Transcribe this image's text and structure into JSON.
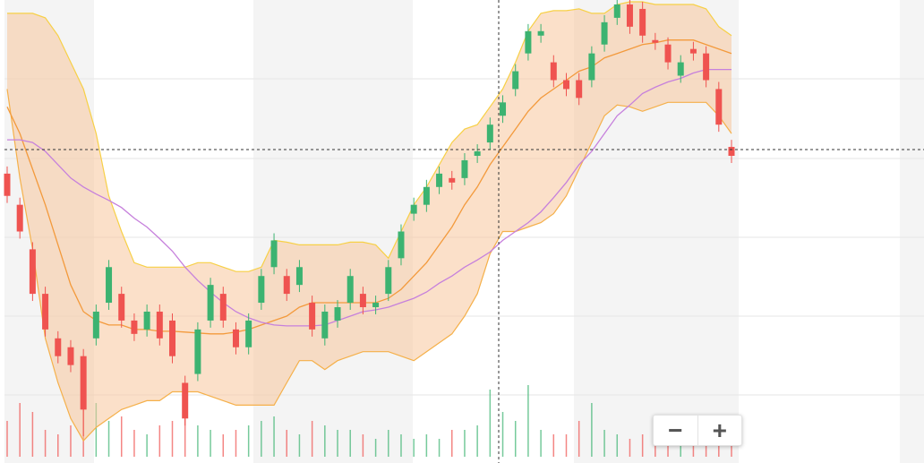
{
  "chart_data": {
    "type": "candlestick",
    "open": [
      325,
      290,
      240,
      190,
      140,
      130,
      120,
      140,
      180,
      190,
      160,
      150,
      170,
      160,
      90,
      100,
      160,
      190,
      150,
      130,
      180,
      220,
      210,
      200,
      180,
      140,
      160,
      180,
      190,
      175,
      190,
      230,
      280,
      290,
      310,
      320,
      320,
      345,
      360,
      390,
      420,
      460,
      480,
      450,
      430,
      430,
      430,
      470,
      500,
      515,
      510,
      475,
      470,
      435,
      465,
      460,
      420,
      355
    ],
    "high": [
      333,
      298,
      248,
      198,
      148,
      138,
      128,
      178,
      228,
      198,
      168,
      178,
      178,
      168,
      98,
      158,
      208,
      198,
      158,
      168,
      218,
      258,
      218,
      228,
      188,
      178,
      183,
      218,
      198,
      188,
      228,
      268,
      298,
      318,
      333,
      328,
      348,
      358,
      388,
      413,
      448,
      493,
      493,
      458,
      438,
      438,
      468,
      503,
      520,
      520,
      518,
      483,
      478,
      458,
      473,
      468,
      428,
      363
    ],
    "low": [
      292,
      252,
      182,
      142,
      112,
      102,
      30,
      132,
      172,
      152,
      137,
      142,
      132,
      112,
      42,
      92,
      152,
      152,
      122,
      122,
      172,
      212,
      182,
      192,
      142,
      132,
      152,
      172,
      167,
      167,
      182,
      222,
      272,
      282,
      302,
      307,
      312,
      337,
      352,
      382,
      412,
      452,
      472,
      422,
      412,
      402,
      422,
      462,
      492,
      482,
      472,
      464,
      442,
      427,
      452,
      422,
      372,
      337
    ],
    "close": [
      300,
      260,
      190,
      150,
      120,
      110,
      60,
      170,
      220,
      160,
      145,
      170,
      140,
      120,
      50,
      150,
      200,
      160,
      130,
      160,
      210,
      250,
      190,
      220,
      150,
      170,
      175,
      210,
      175,
      180,
      220,
      260,
      290,
      310,
      325,
      315,
      340,
      350,
      380,
      405,
      440,
      485,
      485,
      430,
      420,
      410,
      460,
      495,
      515,
      490,
      480,
      472,
      450,
      450,
      460,
      430,
      380,
      345
    ],
    "volume": [
      40,
      60,
      50,
      30,
      25,
      35,
      70,
      60,
      40,
      45,
      30,
      25,
      35,
      40,
      55,
      35,
      30,
      25,
      30,
      35,
      40,
      45,
      30,
      25,
      40,
      35,
      30,
      30,
      25,
      20,
      30,
      25,
      20,
      25,
      20,
      30,
      30,
      35,
      75,
      50,
      40,
      80,
      30,
      25,
      25,
      40,
      60,
      30,
      25,
      20,
      25,
      30,
      25,
      20,
      30,
      25,
      35,
      40
    ],
    "up_color": "#3cb371",
    "down_color": "#ef5350",
    "ylim": [
      0,
      520
    ],
    "volume_lim": [
      0,
      100
    ],
    "band": {
      "fill": "#f7c79c",
      "upper_color": "#f7d046",
      "lower_color": "#f5b04a",
      "upper": [
        505,
        505,
        505,
        500,
        480,
        450,
        420,
        370,
        300,
        260,
        225,
        220,
        220,
        220,
        220,
        225,
        225,
        220,
        215,
        215,
        220,
        250,
        248,
        245,
        245,
        245,
        245,
        248,
        248,
        245,
        230,
        260,
        290,
        310,
        335,
        360,
        375,
        380,
        400,
        420,
        450,
        485,
        505,
        508,
        508,
        510,
        505,
        505,
        515,
        518,
        518,
        515,
        515,
        515,
        515,
        510,
        490,
        480
      ],
      "lower": [
        420,
        320,
        240,
        140,
        90,
        50,
        25,
        40,
        50,
        60,
        65,
        70,
        70,
        80,
        80,
        80,
        75,
        70,
        65,
        65,
        65,
        65,
        90,
        115,
        115,
        105,
        115,
        120,
        125,
        125,
        125,
        120,
        115,
        125,
        135,
        145,
        165,
        190,
        235,
        260,
        260,
        265,
        270,
        280,
        300,
        330,
        360,
        390,
        402,
        400,
        395,
        400,
        405,
        405,
        405,
        405,
        390,
        370
      ]
    },
    "overlays": [
      {
        "color": "#f39a3c",
        "values": [
          400,
          370,
          330,
          290,
          245,
          200,
          170,
          160,
          155,
          155,
          150,
          150,
          148,
          148,
          147,
          146,
          145,
          145,
          147,
          150,
          155,
          160,
          165,
          175,
          180,
          180,
          180,
          180,
          180,
          180,
          185,
          195,
          210,
          225,
          245,
          265,
          290,
          310,
          335,
          355,
          375,
          395,
          410,
          420,
          430,
          440,
          445,
          455,
          460,
          465,
          470,
          472,
          475,
          475,
          475,
          470,
          465,
          460
        ]
      },
      {
        "color": "#c680dc",
        "values": [
          363,
          363,
          360,
          350,
          335,
          320,
          310,
          302,
          295,
          287,
          275,
          265,
          252,
          238,
          220,
          205,
          192,
          180,
          170,
          163,
          158,
          155,
          154,
          154,
          154,
          155,
          160,
          165,
          170,
          172,
          175,
          180,
          185,
          192,
          202,
          210,
          220,
          228,
          237,
          250,
          260,
          270,
          282,
          298,
          315,
          335,
          350,
          370,
          390,
          402,
          415,
          422,
          428,
          432,
          438,
          442,
          442,
          442
        ]
      }
    ]
  },
  "controls": {
    "zoom_out": "−",
    "zoom_in": "+"
  }
}
